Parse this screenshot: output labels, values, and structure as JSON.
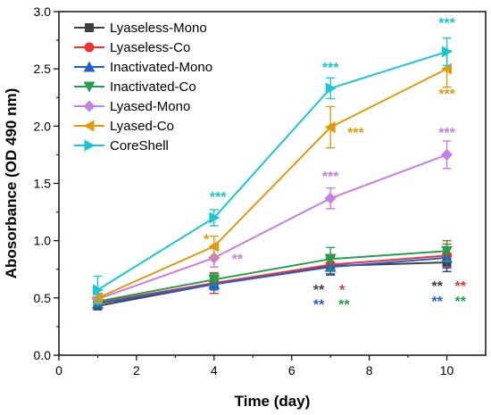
{
  "chart_data": {
    "type": "line",
    "title": "",
    "xlabel": "Time (day)",
    "ylabel": "Abosorbance (OD 490 nm)",
    "xlim": [
      0,
      11
    ],
    "ylim": [
      0.0,
      3.0
    ],
    "x_ticks": [
      "0",
      "2",
      "4",
      "6",
      "8",
      "10"
    ],
    "y_ticks": [
      "0.0",
      "0.5",
      "1.0",
      "1.5",
      "2.0",
      "2.5",
      "3.0"
    ],
    "x": [
      1,
      4,
      7,
      10
    ],
    "legend_position": "top-left",
    "grid": false,
    "series": [
      {
        "name": "Lyaseless-Mono",
        "color": "#404040",
        "marker": "square",
        "values": [
          0.43,
          0.62,
          0.78,
          0.81
        ],
        "errors": [
          0.03,
          0.05,
          0.07,
          0.08
        ]
      },
      {
        "name": "Lyaseless-Co",
        "color": "#ee3333",
        "marker": "circle",
        "values": [
          0.46,
          0.63,
          0.79,
          0.87
        ],
        "errors": [
          0.04,
          0.09,
          0.09,
          0.1
        ]
      },
      {
        "name": "Inactivated-Mono",
        "color": "#1f5fd6",
        "marker": "triangle-up",
        "values": [
          0.45,
          0.62,
          0.77,
          0.85
        ],
        "errors": [
          0.03,
          0.05,
          0.07,
          0.09
        ]
      },
      {
        "name": "Inactivated-Co",
        "color": "#22a04a",
        "marker": "triangle-down",
        "values": [
          0.47,
          0.66,
          0.84,
          0.91
        ],
        "errors": [
          0.03,
          0.05,
          0.1,
          0.09
        ]
      },
      {
        "name": "Lyased-Mono",
        "color": "#c77ee6",
        "marker": "diamond",
        "values": [
          0.49,
          0.85,
          1.37,
          1.75
        ],
        "errors": [
          0.04,
          0.08,
          0.09,
          0.12
        ]
      },
      {
        "name": "Lyased-Co",
        "color": "#e09b0c",
        "marker": "triangle-left",
        "values": [
          0.5,
          0.95,
          1.99,
          2.5
        ],
        "errors": [
          0.04,
          0.09,
          0.18,
          0.16
        ]
      },
      {
        "name": "CoreShell",
        "color": "#19c6d4",
        "marker": "triangle-right",
        "values": [
          0.57,
          1.2,
          2.33,
          2.65
        ],
        "errors": [
          0.12,
          0.07,
          0.09,
          0.12
        ]
      }
    ],
    "annotations": [
      {
        "text": "***",
        "color": "#19c6d4",
        "x": 4.1,
        "y": 1.34
      },
      {
        "text": "*",
        "color": "#e09b0c",
        "x": 3.8,
        "y": 0.97
      },
      {
        "text": "**",
        "color": "#c77ee6",
        "x": 4.6,
        "y": 0.8
      },
      {
        "text": "***",
        "color": "#19c6d4",
        "x": 7.0,
        "y": 2.47
      },
      {
        "text": "***",
        "color": "#e09b0c",
        "x": 7.65,
        "y": 1.9
      },
      {
        "text": "***",
        "color": "#c77ee6",
        "x": 7.0,
        "y": 1.52
      },
      {
        "text": "**",
        "color": "#404040",
        "x": 6.7,
        "y": 0.53
      },
      {
        "text": "*",
        "color": "#ee3333",
        "x": 7.3,
        "y": 0.53
      },
      {
        "text": "**",
        "color": "#1f5fd6",
        "x": 6.7,
        "y": 0.4
      },
      {
        "text": "**",
        "color": "#22a04a",
        "x": 7.35,
        "y": 0.4
      },
      {
        "text": "***",
        "color": "#19c6d4",
        "x": 10.0,
        "y": 2.86
      },
      {
        "text": "***",
        "color": "#e09b0c",
        "x": 10.0,
        "y": 2.24
      },
      {
        "text": "***",
        "color": "#c77ee6",
        "x": 10.0,
        "y": 1.9
      },
      {
        "text": "**",
        "color": "#404040",
        "x": 9.75,
        "y": 0.56
      },
      {
        "text": "**",
        "color": "#ee3333",
        "x": 10.35,
        "y": 0.56
      },
      {
        "text": "**",
        "color": "#1f5fd6",
        "x": 9.75,
        "y": 0.43
      },
      {
        "text": "**",
        "color": "#22a04a",
        "x": 10.35,
        "y": 0.43
      }
    ]
  }
}
